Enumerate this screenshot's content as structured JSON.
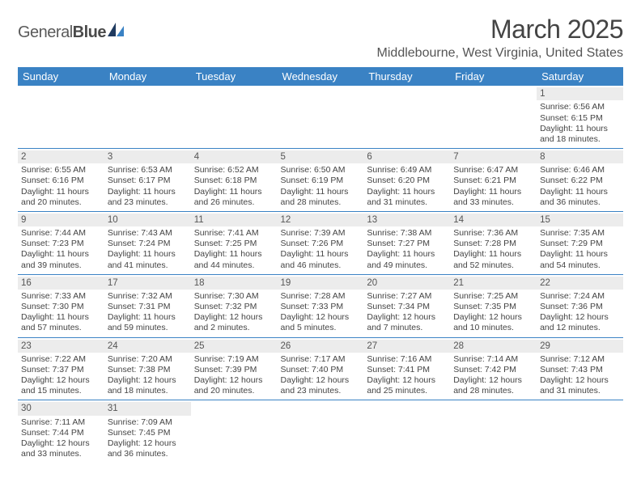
{
  "logo": {
    "brand_a": "General",
    "brand_b": "Blue"
  },
  "title": "March 2025",
  "location": "Middlebourne, West Virginia, United States",
  "colors": {
    "header_bg": "#3a82c4",
    "header_fg": "#ffffff",
    "daynum_bg": "#ececec",
    "text": "#444444",
    "rule": "#3a82c4"
  },
  "day_headers": [
    "Sunday",
    "Monday",
    "Tuesday",
    "Wednesday",
    "Thursday",
    "Friday",
    "Saturday"
  ],
  "weeks": [
    [
      {
        "n": "",
        "empty": true
      },
      {
        "n": "",
        "empty": true
      },
      {
        "n": "",
        "empty": true
      },
      {
        "n": "",
        "empty": true
      },
      {
        "n": "",
        "empty": true
      },
      {
        "n": "",
        "empty": true
      },
      {
        "n": "1",
        "sr": "Sunrise: 6:56 AM",
        "ss": "Sunset: 6:15 PM",
        "d1": "Daylight: 11 hours",
        "d2": "and 18 minutes."
      }
    ],
    [
      {
        "n": "2",
        "sr": "Sunrise: 6:55 AM",
        "ss": "Sunset: 6:16 PM",
        "d1": "Daylight: 11 hours",
        "d2": "and 20 minutes."
      },
      {
        "n": "3",
        "sr": "Sunrise: 6:53 AM",
        "ss": "Sunset: 6:17 PM",
        "d1": "Daylight: 11 hours",
        "d2": "and 23 minutes."
      },
      {
        "n": "4",
        "sr": "Sunrise: 6:52 AM",
        "ss": "Sunset: 6:18 PM",
        "d1": "Daylight: 11 hours",
        "d2": "and 26 minutes."
      },
      {
        "n": "5",
        "sr": "Sunrise: 6:50 AM",
        "ss": "Sunset: 6:19 PM",
        "d1": "Daylight: 11 hours",
        "d2": "and 28 minutes."
      },
      {
        "n": "6",
        "sr": "Sunrise: 6:49 AM",
        "ss": "Sunset: 6:20 PM",
        "d1": "Daylight: 11 hours",
        "d2": "and 31 minutes."
      },
      {
        "n": "7",
        "sr": "Sunrise: 6:47 AM",
        "ss": "Sunset: 6:21 PM",
        "d1": "Daylight: 11 hours",
        "d2": "and 33 minutes."
      },
      {
        "n": "8",
        "sr": "Sunrise: 6:46 AM",
        "ss": "Sunset: 6:22 PM",
        "d1": "Daylight: 11 hours",
        "d2": "and 36 minutes."
      }
    ],
    [
      {
        "n": "9",
        "sr": "Sunrise: 7:44 AM",
        "ss": "Sunset: 7:23 PM",
        "d1": "Daylight: 11 hours",
        "d2": "and 39 minutes."
      },
      {
        "n": "10",
        "sr": "Sunrise: 7:43 AM",
        "ss": "Sunset: 7:24 PM",
        "d1": "Daylight: 11 hours",
        "d2": "and 41 minutes."
      },
      {
        "n": "11",
        "sr": "Sunrise: 7:41 AM",
        "ss": "Sunset: 7:25 PM",
        "d1": "Daylight: 11 hours",
        "d2": "and 44 minutes."
      },
      {
        "n": "12",
        "sr": "Sunrise: 7:39 AM",
        "ss": "Sunset: 7:26 PM",
        "d1": "Daylight: 11 hours",
        "d2": "and 46 minutes."
      },
      {
        "n": "13",
        "sr": "Sunrise: 7:38 AM",
        "ss": "Sunset: 7:27 PM",
        "d1": "Daylight: 11 hours",
        "d2": "and 49 minutes."
      },
      {
        "n": "14",
        "sr": "Sunrise: 7:36 AM",
        "ss": "Sunset: 7:28 PM",
        "d1": "Daylight: 11 hours",
        "d2": "and 52 minutes."
      },
      {
        "n": "15",
        "sr": "Sunrise: 7:35 AM",
        "ss": "Sunset: 7:29 PM",
        "d1": "Daylight: 11 hours",
        "d2": "and 54 minutes."
      }
    ],
    [
      {
        "n": "16",
        "sr": "Sunrise: 7:33 AM",
        "ss": "Sunset: 7:30 PM",
        "d1": "Daylight: 11 hours",
        "d2": "and 57 minutes."
      },
      {
        "n": "17",
        "sr": "Sunrise: 7:32 AM",
        "ss": "Sunset: 7:31 PM",
        "d1": "Daylight: 11 hours",
        "d2": "and 59 minutes."
      },
      {
        "n": "18",
        "sr": "Sunrise: 7:30 AM",
        "ss": "Sunset: 7:32 PM",
        "d1": "Daylight: 12 hours",
        "d2": "and 2 minutes."
      },
      {
        "n": "19",
        "sr": "Sunrise: 7:28 AM",
        "ss": "Sunset: 7:33 PM",
        "d1": "Daylight: 12 hours",
        "d2": "and 5 minutes."
      },
      {
        "n": "20",
        "sr": "Sunrise: 7:27 AM",
        "ss": "Sunset: 7:34 PM",
        "d1": "Daylight: 12 hours",
        "d2": "and 7 minutes."
      },
      {
        "n": "21",
        "sr": "Sunrise: 7:25 AM",
        "ss": "Sunset: 7:35 PM",
        "d1": "Daylight: 12 hours",
        "d2": "and 10 minutes."
      },
      {
        "n": "22",
        "sr": "Sunrise: 7:24 AM",
        "ss": "Sunset: 7:36 PM",
        "d1": "Daylight: 12 hours",
        "d2": "and 12 minutes."
      }
    ],
    [
      {
        "n": "23",
        "sr": "Sunrise: 7:22 AM",
        "ss": "Sunset: 7:37 PM",
        "d1": "Daylight: 12 hours",
        "d2": "and 15 minutes."
      },
      {
        "n": "24",
        "sr": "Sunrise: 7:20 AM",
        "ss": "Sunset: 7:38 PM",
        "d1": "Daylight: 12 hours",
        "d2": "and 18 minutes."
      },
      {
        "n": "25",
        "sr": "Sunrise: 7:19 AM",
        "ss": "Sunset: 7:39 PM",
        "d1": "Daylight: 12 hours",
        "d2": "and 20 minutes."
      },
      {
        "n": "26",
        "sr": "Sunrise: 7:17 AM",
        "ss": "Sunset: 7:40 PM",
        "d1": "Daylight: 12 hours",
        "d2": "and 23 minutes."
      },
      {
        "n": "27",
        "sr": "Sunrise: 7:16 AM",
        "ss": "Sunset: 7:41 PM",
        "d1": "Daylight: 12 hours",
        "d2": "and 25 minutes."
      },
      {
        "n": "28",
        "sr": "Sunrise: 7:14 AM",
        "ss": "Sunset: 7:42 PM",
        "d1": "Daylight: 12 hours",
        "d2": "and 28 minutes."
      },
      {
        "n": "29",
        "sr": "Sunrise: 7:12 AM",
        "ss": "Sunset: 7:43 PM",
        "d1": "Daylight: 12 hours",
        "d2": "and 31 minutes."
      }
    ],
    [
      {
        "n": "30",
        "sr": "Sunrise: 7:11 AM",
        "ss": "Sunset: 7:44 PM",
        "d1": "Daylight: 12 hours",
        "d2": "and 33 minutes."
      },
      {
        "n": "31",
        "sr": "Sunrise: 7:09 AM",
        "ss": "Sunset: 7:45 PM",
        "d1": "Daylight: 12 hours",
        "d2": "and 36 minutes."
      },
      {
        "n": "",
        "empty": true
      },
      {
        "n": "",
        "empty": true
      },
      {
        "n": "",
        "empty": true
      },
      {
        "n": "",
        "empty": true
      },
      {
        "n": "",
        "empty": true
      }
    ]
  ]
}
